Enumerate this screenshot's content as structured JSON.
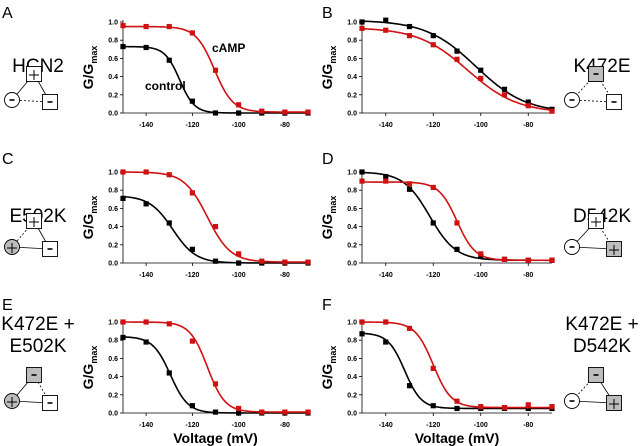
{
  "figure": {
    "x_axis_label": "Voltage (mV)",
    "y_axis_label_main": "G/G",
    "y_axis_label_sub": "max",
    "series_colors": {
      "control": "#000000",
      "cAMP": "#d11111"
    },
    "symbol_colors": {
      "box_fill_neutral": "#ffffff",
      "box_fill_mutated": "#bdbdbd"
    }
  },
  "chart_data": [
    {
      "panel": "A",
      "type": "line",
      "construct_lines": [
        "HCN2"
      ],
      "xlim": [
        -150,
        -70
      ],
      "ylim": [
        0,
        1
      ],
      "x_ticks": [
        -140,
        -120,
        -100,
        -80
      ],
      "y_ticks": [
        "0.0",
        "0.2",
        "0.4",
        "0.6",
        "0.8",
        "1.0"
      ],
      "annotations": [
        {
          "text": "cAMP",
          "series": "cAMP"
        },
        {
          "text": "control",
          "series": "control"
        }
      ],
      "x": [
        -150,
        -140,
        -130,
        -120,
        -110,
        -100,
        -90,
        -80,
        -70
      ],
      "series": [
        {
          "name": "control",
          "values": [
            0.73,
            0.72,
            0.58,
            0.13,
            0.0,
            0.0,
            0.0,
            0.0,
            0.0
          ],
          "fit": {
            "top": 0.73,
            "bottom": 0.0,
            "v_half": -125.5,
            "slope": 3.2
          }
        },
        {
          "name": "cAMP",
          "values": [
            0.96,
            0.95,
            0.95,
            0.88,
            0.47,
            0.09,
            0.02,
            0.01,
            0.01
          ],
          "fit": {
            "top": 0.95,
            "bottom": 0.01,
            "v_half": -110.5,
            "slope": 4.0
          }
        }
      ],
      "diagram": {
        "top": {
          "shape": "square",
          "sign": "+",
          "mutated": false
        },
        "left": {
          "shape": "circle",
          "sign": "-",
          "mutated": false
        },
        "right": {
          "shape": "square",
          "sign": "-",
          "mutated": false
        },
        "edges": {
          "top_left": "solid",
          "top_right": "solid",
          "left_right": "dashed"
        }
      }
    },
    {
      "panel": "B",
      "type": "line",
      "construct_lines": [
        "K472E"
      ],
      "xlim": [
        -150,
        -70
      ],
      "ylim": [
        0,
        1
      ],
      "x_ticks": [
        -140,
        -120,
        -100,
        -80
      ],
      "y_ticks": [
        "0.0",
        "0.2",
        "0.4",
        "0.6",
        "0.8",
        "1.0"
      ],
      "annotations": [],
      "x": [
        -150,
        -140,
        -130,
        -120,
        -110,
        -100,
        -90,
        -80,
        -70
      ],
      "series": [
        {
          "name": "control",
          "values": [
            1.0,
            1.02,
            0.95,
            0.85,
            0.68,
            0.47,
            0.26,
            0.12,
            0.04
          ],
          "fit": {
            "top": 1.02,
            "bottom": 0.0,
            "v_half": -102.0,
            "slope": 10.5
          }
        },
        {
          "name": "cAMP",
          "values": [
            0.93,
            0.91,
            0.85,
            0.75,
            0.59,
            0.38,
            0.2,
            0.08,
            0.02
          ],
          "fit": {
            "top": 0.94,
            "bottom": 0.0,
            "v_half": -105.5,
            "slope": 10.5
          }
        }
      ],
      "diagram": {
        "top": {
          "shape": "square",
          "sign": "-",
          "mutated": true
        },
        "left": {
          "shape": "circle",
          "sign": "-",
          "mutated": false
        },
        "right": {
          "shape": "square",
          "sign": "-",
          "mutated": false
        },
        "edges": {
          "top_left": "dashed",
          "top_right": "dashed",
          "left_right": "dashed"
        }
      }
    },
    {
      "panel": "C",
      "type": "line",
      "construct_lines": [
        "E502K"
      ],
      "xlim": [
        -150,
        -70
      ],
      "ylim": [
        0,
        1
      ],
      "x_ticks": [
        -140,
        -120,
        -100,
        -80
      ],
      "y_ticks": [
        "0.0",
        "0.2",
        "0.4",
        "0.6",
        "0.8",
        "1.0"
      ],
      "annotations": [],
      "x": [
        -150,
        -140,
        -130,
        -120,
        -110,
        -100,
        -90,
        -80,
        -70
      ],
      "series": [
        {
          "name": "control",
          "values": [
            0.71,
            0.65,
            0.44,
            0.15,
            0.02,
            0.0,
            0.0,
            0.0,
            0.0
          ],
          "fit": {
            "top": 0.74,
            "bottom": 0.0,
            "v_half": -128.5,
            "slope": 5.0
          }
        },
        {
          "name": "cAMP",
          "values": [
            1.0,
            1.0,
            0.97,
            0.77,
            0.4,
            0.1,
            0.02,
            0.01,
            0.01
          ],
          "fit": {
            "top": 1.0,
            "bottom": 0.01,
            "v_half": -113.5,
            "slope": 5.0
          }
        }
      ],
      "diagram": {
        "top": {
          "shape": "square",
          "sign": "+",
          "mutated": false
        },
        "left": {
          "shape": "circle",
          "sign": "+",
          "mutated": true
        },
        "right": {
          "shape": "square",
          "sign": "-",
          "mutated": false
        },
        "edges": {
          "top_left": "dashed",
          "top_right": "solid",
          "left_right": "solid"
        }
      }
    },
    {
      "panel": "D",
      "type": "line",
      "construct_lines": [
        "D542K"
      ],
      "xlim": [
        -150,
        -70
      ],
      "ylim": [
        0,
        1
      ],
      "x_ticks": [
        -140,
        -120,
        -100,
        -80
      ],
      "y_ticks": [
        "0.0",
        "0.2",
        "0.4",
        "0.6",
        "0.8",
        "1.0"
      ],
      "annotations": [],
      "x": [
        -150,
        -140,
        -130,
        -120,
        -110,
        -100,
        -90,
        -80,
        -70
      ],
      "series": [
        {
          "name": "control",
          "values": [
            1.0,
            0.95,
            0.81,
            0.44,
            0.15,
            0.08,
            0.04,
            0.03,
            0.03
          ],
          "fit": {
            "top": 1.0,
            "bottom": 0.03,
            "v_half": -121.5,
            "slope": 5.5
          }
        },
        {
          "name": "cAMP",
          "values": [
            0.9,
            0.9,
            0.87,
            0.83,
            0.44,
            0.1,
            0.04,
            0.03,
            0.03
          ],
          "fit": {
            "top": 0.89,
            "bottom": 0.03,
            "v_half": -110.0,
            "slope": 3.8
          }
        }
      ],
      "diagram": {
        "top": {
          "shape": "square",
          "sign": "+",
          "mutated": false
        },
        "left": {
          "shape": "circle",
          "sign": "-",
          "mutated": false
        },
        "right": {
          "shape": "square",
          "sign": "+",
          "mutated": true
        },
        "edges": {
          "top_left": "solid",
          "top_right": "dashed",
          "left_right": "solid"
        }
      }
    },
    {
      "panel": "E",
      "type": "line",
      "construct_lines": [
        "K472E +",
        "E502K"
      ],
      "xlim": [
        -150,
        -70
      ],
      "ylim": [
        0,
        1
      ],
      "x_ticks": [
        -140,
        -120,
        -100,
        -80
      ],
      "y_ticks": [
        "0.0",
        "0.2",
        "0.4",
        "0.6",
        "0.8",
        "1.0"
      ],
      "annotations": [],
      "x": [
        -150,
        -140,
        -130,
        -120,
        -110,
        -100,
        -90,
        -80,
        -70
      ],
      "series": [
        {
          "name": "control",
          "values": [
            0.83,
            0.78,
            0.44,
            0.08,
            0.01,
            0.0,
            0.0,
            0.0,
            0.0
          ],
          "fit": {
            "top": 0.84,
            "bottom": 0.0,
            "v_half": -129.5,
            "slope": 3.8
          }
        },
        {
          "name": "cAMP",
          "values": [
            1.0,
            1.0,
            0.98,
            0.79,
            0.32,
            0.05,
            0.01,
            0.01,
            0.01
          ],
          "fit": {
            "top": 1.0,
            "bottom": 0.01,
            "v_half": -113.5,
            "slope": 3.8
          }
        }
      ],
      "diagram": {
        "top": {
          "shape": "square",
          "sign": "-",
          "mutated": true
        },
        "left": {
          "shape": "circle",
          "sign": "+",
          "mutated": true
        },
        "right": {
          "shape": "square",
          "sign": "-",
          "mutated": false
        },
        "edges": {
          "top_left": "solid",
          "top_right": "dashed",
          "left_right": "solid"
        }
      }
    },
    {
      "panel": "F",
      "type": "line",
      "construct_lines": [
        "K472E +",
        "D542K"
      ],
      "xlim": [
        -150,
        -70
      ],
      "ylim": [
        0,
        1
      ],
      "x_ticks": [
        -140,
        -120,
        -100,
        -80
      ],
      "y_ticks": [
        "0.0",
        "0.2",
        "0.4",
        "0.6",
        "0.8",
        "1.0"
      ],
      "annotations": [],
      "x": [
        -150,
        -140,
        -130,
        -120,
        -110,
        -100,
        -90,
        -80,
        -70
      ],
      "series": [
        {
          "name": "control",
          "values": [
            0.87,
            0.78,
            0.3,
            0.08,
            0.05,
            0.05,
            0.05,
            0.05,
            0.05
          ],
          "fit": {
            "top": 0.88,
            "bottom": 0.05,
            "v_half": -132.0,
            "slope": 3.5
          }
        },
        {
          "name": "cAMP",
          "values": [
            1.0,
            1.0,
            0.93,
            0.49,
            0.13,
            0.07,
            0.06,
            0.09,
            0.07
          ],
          "fit": {
            "top": 1.0,
            "bottom": 0.06,
            "v_half": -120.0,
            "slope": 3.8
          }
        }
      ],
      "diagram": {
        "top": {
          "shape": "square",
          "sign": "-",
          "mutated": true
        },
        "left": {
          "shape": "circle",
          "sign": "-",
          "mutated": false
        },
        "right": {
          "shape": "square",
          "sign": "+",
          "mutated": true
        },
        "edges": {
          "top_left": "dashed",
          "top_right": "solid",
          "left_right": "solid"
        }
      }
    }
  ]
}
